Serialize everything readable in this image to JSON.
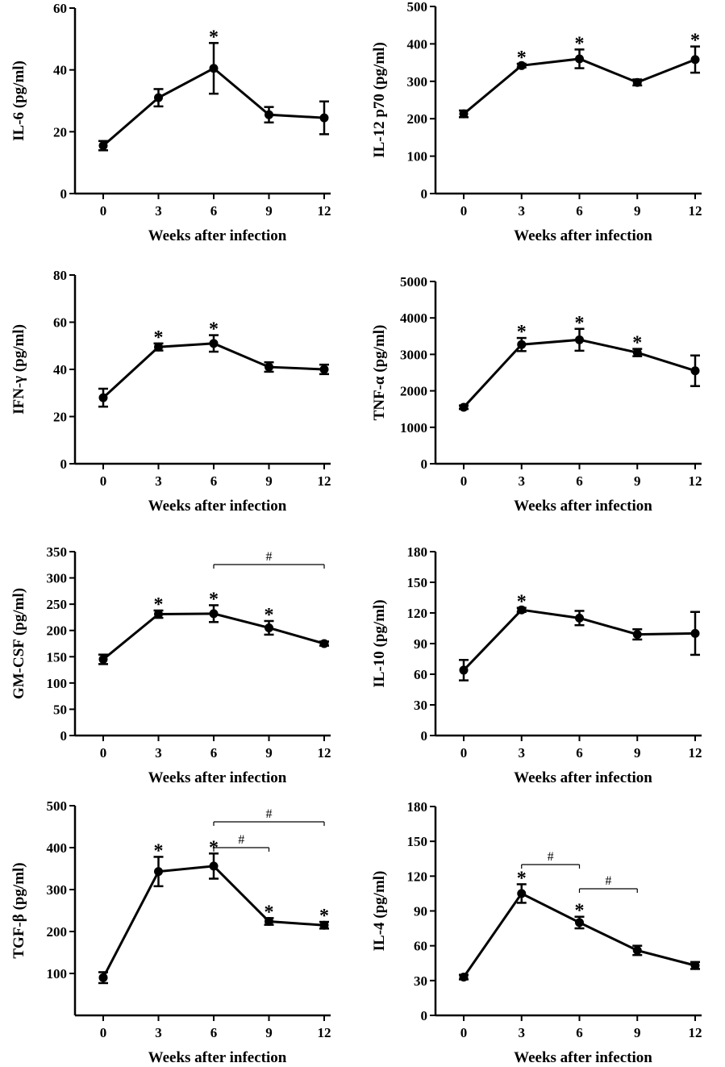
{
  "chart_data": [
    {
      "type": "line",
      "xlabel": "Weeks after infection",
      "ylabel": "IL-6 (pg/ml)",
      "ylim": [
        0,
        60
      ],
      "yticks": [
        0,
        20,
        40,
        60
      ],
      "xticks": [
        0,
        3,
        6,
        9,
        12
      ],
      "x": [
        0,
        3,
        6,
        9,
        12
      ],
      "values": [
        15.5,
        31,
        40.5,
        25.5,
        24.5
      ],
      "errors": [
        1.5,
        2.8,
        8.2,
        2.5,
        5.3
      ],
      "stars": [
        6
      ],
      "brackets": []
    },
    {
      "type": "line",
      "xlabel": "Weeks after infection",
      "ylabel": "IL-12 p70 (pg/ml)",
      "ylim": [
        0,
        500
      ],
      "yticks": [
        0,
        100,
        200,
        300,
        400,
        500
      ],
      "xticks": [
        0,
        3,
        6,
        9,
        12
      ],
      "x": [
        0,
        3,
        6,
        9,
        12
      ],
      "values": [
        213,
        342,
        360,
        297,
        358
      ],
      "errors": [
        9,
        5,
        25,
        8,
        35
      ],
      "stars": [
        3,
        6,
        12
      ],
      "brackets": []
    },
    {
      "type": "line",
      "xlabel": "Weeks after infection",
      "ylabel": "IFN-γ  (pg/ml)",
      "ylim": [
        0,
        80
      ],
      "yticks": [
        0,
        20,
        40,
        60,
        80
      ],
      "xticks": [
        0,
        3,
        6,
        9,
        12
      ],
      "x": [
        0,
        3,
        6,
        9,
        12
      ],
      "values": [
        28,
        49.5,
        51,
        41,
        40
      ],
      "errors": [
        3.8,
        1.5,
        3.5,
        2,
        2
      ],
      "stars": [
        3,
        6
      ],
      "brackets": []
    },
    {
      "type": "line",
      "xlabel": "Weeks after infection",
      "ylabel": "TNF-α  (pg/ml)",
      "ylim": [
        0,
        5000
      ],
      "yticks": [
        0,
        1000,
        2000,
        3000,
        4000,
        5000
      ],
      "xticks": [
        0,
        3,
        6,
        9,
        12
      ],
      "x": [
        0,
        3,
        6,
        9,
        12
      ],
      "values": [
        1550,
        3270,
        3400,
        3050,
        2550
      ],
      "errors": [
        50,
        180,
        300,
        100,
        420
      ],
      "stars": [
        3,
        6,
        9
      ],
      "brackets": []
    },
    {
      "type": "line",
      "xlabel": "Weeks after infection",
      "ylabel": "GM-CSF  (pg/ml)",
      "ylim": [
        0,
        350
      ],
      "yticks": [
        0,
        50,
        100,
        150,
        200,
        250,
        300,
        350
      ],
      "xticks": [
        0,
        3,
        6,
        9,
        12
      ],
      "x": [
        0,
        3,
        6,
        9,
        12
      ],
      "values": [
        145,
        231,
        232,
        205,
        175
      ],
      "errors": [
        9,
        7,
        16,
        13,
        4
      ],
      "stars": [
        3,
        6,
        9
      ],
      "brackets": [
        {
          "from": 6,
          "to": 12,
          "label": "#",
          "level": 0
        }
      ]
    },
    {
      "type": "line",
      "xlabel": "Weeks after infection",
      "ylabel": "IL-10  (pg/ml)",
      "ylim": [
        0,
        180
      ],
      "yticks": [
        0,
        30,
        60,
        90,
        120,
        150,
        180
      ],
      "xticks": [
        0,
        3,
        6,
        9,
        12
      ],
      "x": [
        0,
        3,
        6,
        9,
        12
      ],
      "values": [
        64,
        123,
        115,
        99,
        100
      ],
      "errors": [
        10,
        2,
        7,
        5,
        21
      ],
      "stars": [
        3
      ],
      "brackets": []
    },
    {
      "type": "line",
      "xlabel": "Weeks after infection",
      "ylabel": "TGF-β  (pg/ml)",
      "ylim": [
        0,
        500
      ],
      "yticks": [
        100,
        200,
        300,
        400,
        500
      ],
      "xticks": [
        0,
        3,
        6,
        9,
        12
      ],
      "x": [
        0,
        3,
        6,
        9,
        12
      ],
      "values": [
        90,
        343,
        356,
        224,
        215
      ],
      "errors": [
        13,
        35,
        30,
        8,
        8
      ],
      "stars": [
        3,
        6,
        9,
        12
      ],
      "brackets": [
        {
          "from": 6,
          "to": 9,
          "label": "#",
          "level": 0
        },
        {
          "from": 6,
          "to": 12,
          "label": "#",
          "level": 1
        }
      ]
    },
    {
      "type": "line",
      "xlabel": "Weeks after infection",
      "ylabel": "IL-4  (pg/ml)",
      "ylim": [
        0,
        180
      ],
      "yticks": [
        0,
        30,
        60,
        90,
        120,
        150,
        180
      ],
      "xticks": [
        0,
        3,
        6,
        9,
        12
      ],
      "x": [
        0,
        3,
        6,
        9,
        12
      ],
      "values": [
        33,
        105,
        80,
        56,
        43
      ],
      "errors": [
        2,
        8,
        5,
        4,
        3
      ],
      "stars": [
        3,
        6
      ],
      "brackets": [
        {
          "from": 3,
          "to": 6,
          "label": "#",
          "level": 0
        },
        {
          "from": 6,
          "to": 9,
          "label": "#",
          "level": 0
        }
      ]
    }
  ]
}
